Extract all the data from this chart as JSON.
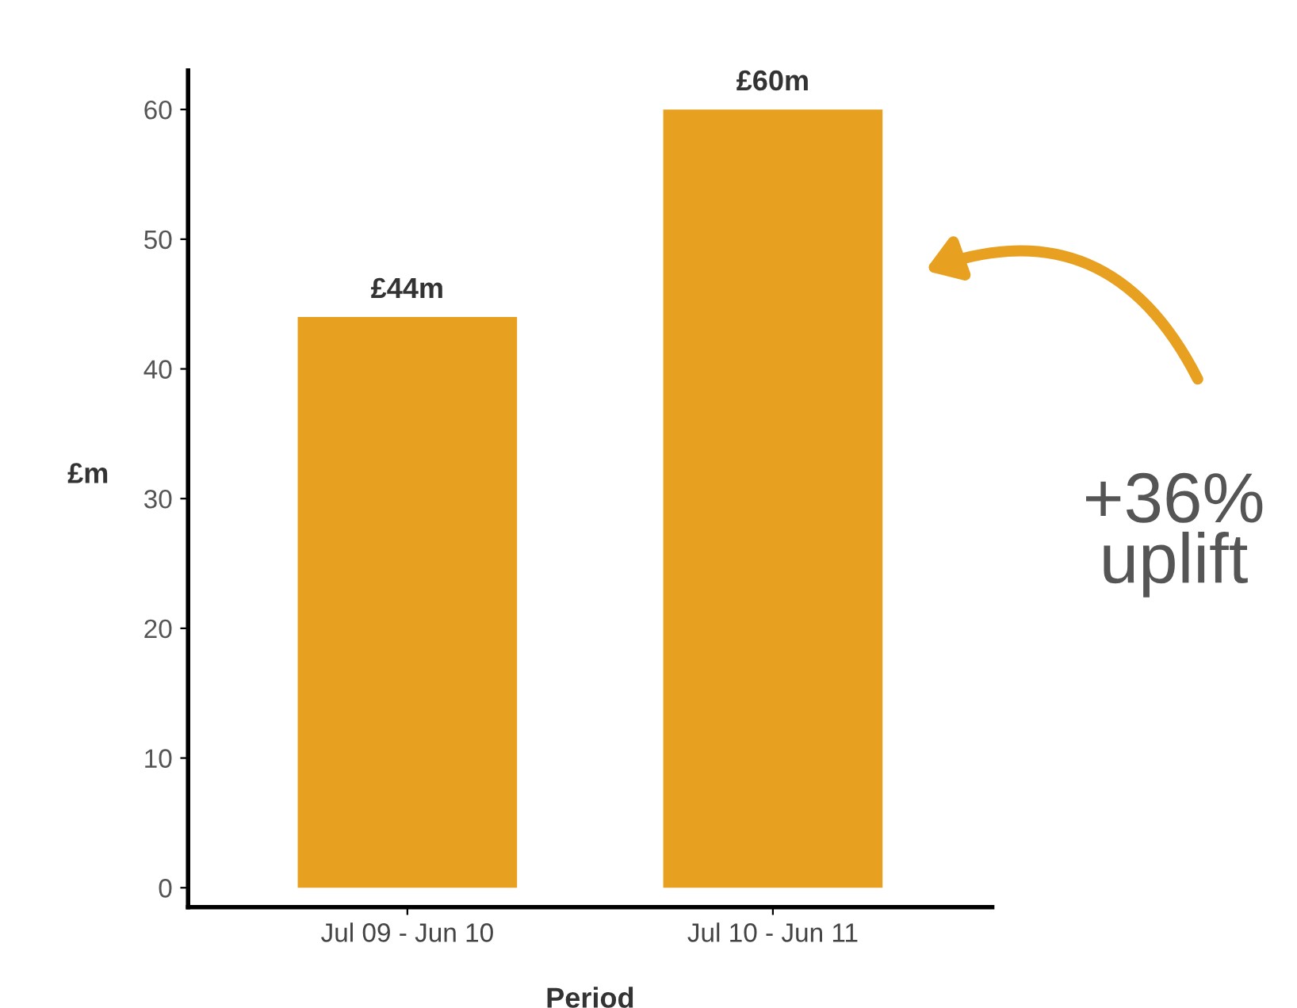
{
  "chart_data": {
    "type": "bar",
    "xlabel": "Period",
    "ylabel": "£m",
    "categories": [
      "Jul 09 - Jun 10",
      "Jul 10 - Jun 11"
    ],
    "values": [
      44,
      60
    ],
    "value_labels": [
      "£44m",
      "£60m"
    ],
    "color": "#e8a020",
    "ylim": [
      -1.5,
      63
    ],
    "yticks": [
      0,
      10,
      20,
      30,
      40,
      50,
      60
    ],
    "grid": false,
    "legend": false,
    "annotations": [
      "+36%\nuplift"
    ]
  }
}
